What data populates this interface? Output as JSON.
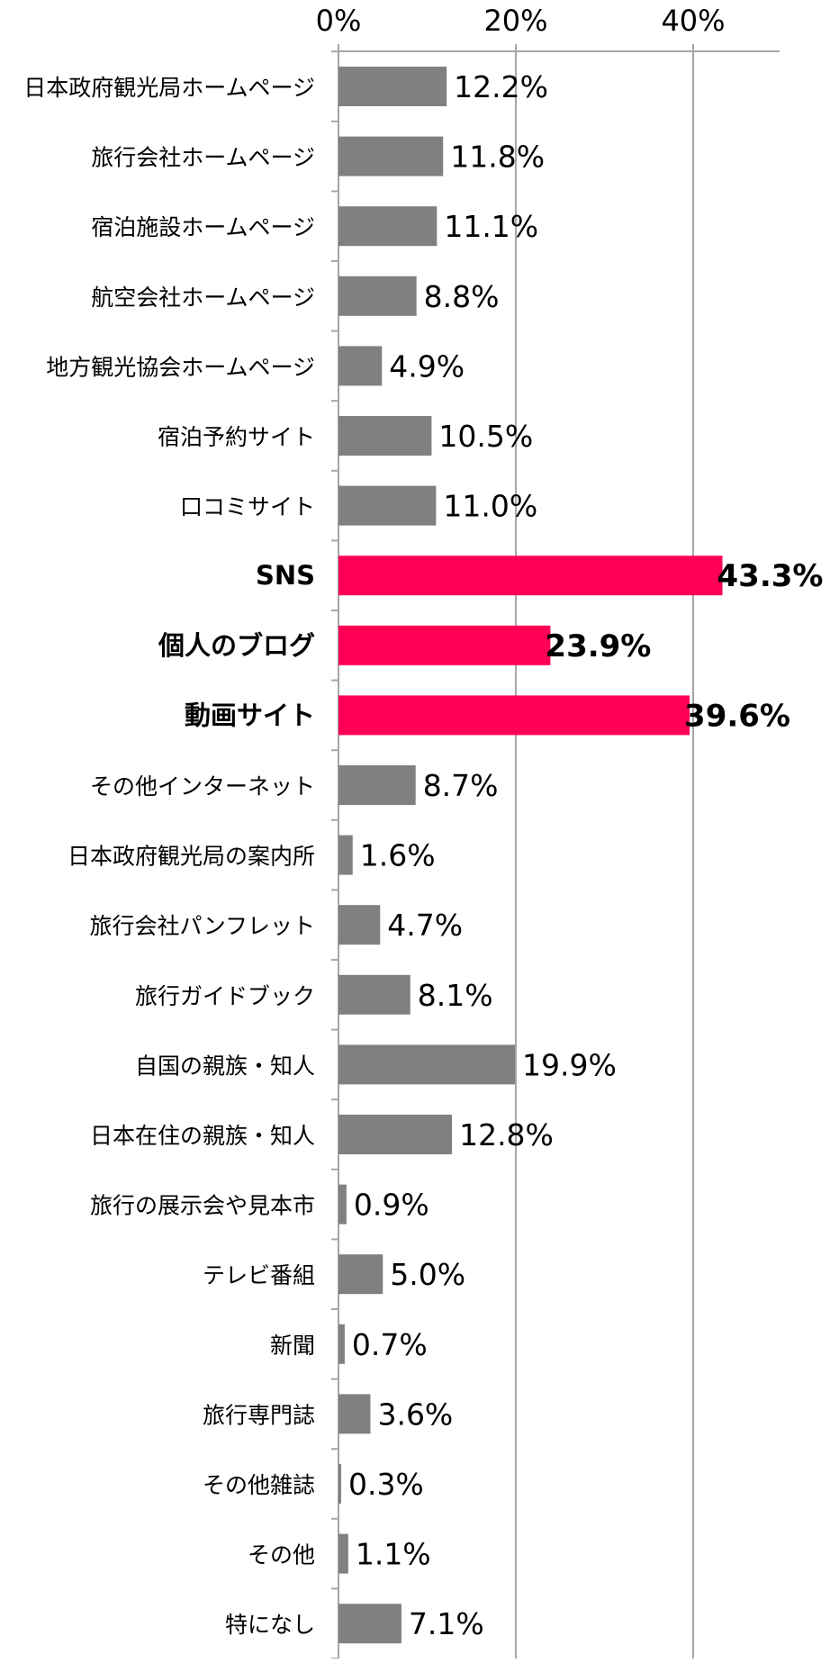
{
  "chart_data": {
    "type": "bar",
    "orientation": "horizontal",
    "xlim": [
      0,
      50
    ],
    "x_ticks": [
      0,
      20,
      40
    ],
    "x_tick_labels": [
      "0%",
      "20%",
      "40%"
    ],
    "grid": true,
    "unit": "%",
    "colors": {
      "default": "#808080",
      "highlight": "#ff0055",
      "grid": "#a6a6a6",
      "axis": "#a6a6a6"
    },
    "categories": [
      "日本政府観光局ホームページ",
      "旅行会社ホームページ",
      "宿泊施設ホームページ",
      "航空会社ホームページ",
      "地方観光協会ホームページ",
      "宿泊予約サイト",
      "口コミサイト",
      "SNS",
      "個人のブログ",
      "動画サイト",
      "その他インターネット",
      "日本政府観光局の案内所",
      "旅行会社パンフレット",
      "旅行ガイドブック",
      "自国の親族・知人",
      "日本在住の親族・知人",
      "旅行の展示会や見本市",
      "テレビ番組",
      "新聞",
      "旅行専門誌",
      "その他雑誌",
      "その他",
      "特になし"
    ],
    "values": [
      12.2,
      11.8,
      11.1,
      8.8,
      4.9,
      10.5,
      11.0,
      43.3,
      23.9,
      39.6,
      8.7,
      1.6,
      4.7,
      8.1,
      19.9,
      12.8,
      0.9,
      5.0,
      0.7,
      3.6,
      0.3,
      1.1,
      7.1
    ],
    "value_labels": [
      "12.2%",
      "11.8%",
      "11.1%",
      "8.8%",
      "4.9%",
      "10.5%",
      "11.0%",
      "43.3%",
      "23.9%",
      "39.6%",
      "8.7%",
      "1.6%",
      "4.7%",
      "8.1%",
      "19.9%",
      "12.8%",
      "0.9%",
      "5.0%",
      "0.7%",
      "3.6%",
      "0.3%",
      "1.1%",
      "7.1%"
    ],
    "highlighted": [
      "SNS",
      "個人のブログ",
      "動画サイト"
    ]
  }
}
